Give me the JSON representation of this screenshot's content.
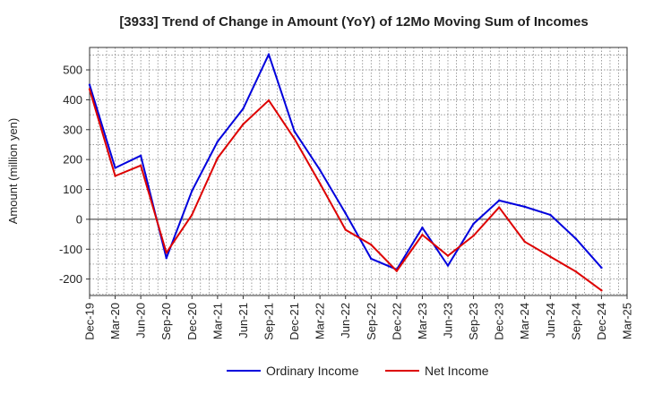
{
  "chart_data": {
    "type": "line",
    "title": "[3933]  Trend of Change in Amount (YoY) of 12Mo Moving Sum of Incomes",
    "ylabel": "Amount (million yen)",
    "xlabel": "",
    "ylim": [
      -255,
      575
    ],
    "yticks": [
      -200,
      -100,
      0,
      100,
      200,
      300,
      400,
      500
    ],
    "grid": true,
    "legend_position": "bottom-center",
    "x": [
      "Dec-19",
      "Mar-20",
      "Jun-20",
      "Sep-20",
      "Dec-20",
      "Mar-21",
      "Jun-21",
      "Sep-21",
      "Dec-21",
      "Mar-22",
      "Jun-22",
      "Sep-22",
      "Dec-22",
      "Mar-23",
      "Jun-23",
      "Sep-23",
      "Dec-23",
      "Mar-24",
      "Jun-24",
      "Sep-24",
      "Dec-24",
      "Mar-25"
    ],
    "series": [
      {
        "name": "Ordinary Income",
        "color": "#0000dd",
        "values": [
          450,
          172,
          213,
          -130,
          95,
          260,
          370,
          552,
          295,
          165,
          20,
          -132,
          -168,
          -28,
          -155,
          -15,
          63,
          42,
          15,
          -65,
          -162,
          null
        ]
      },
      {
        "name": "Net Income",
        "color": "#dd0000",
        "values": [
          435,
          145,
          180,
          -112,
          15,
          205,
          318,
          398,
          270,
          120,
          -35,
          -85,
          -173,
          -52,
          -122,
          -55,
          40,
          -75,
          -125,
          -175,
          -238,
          null
        ]
      }
    ]
  }
}
